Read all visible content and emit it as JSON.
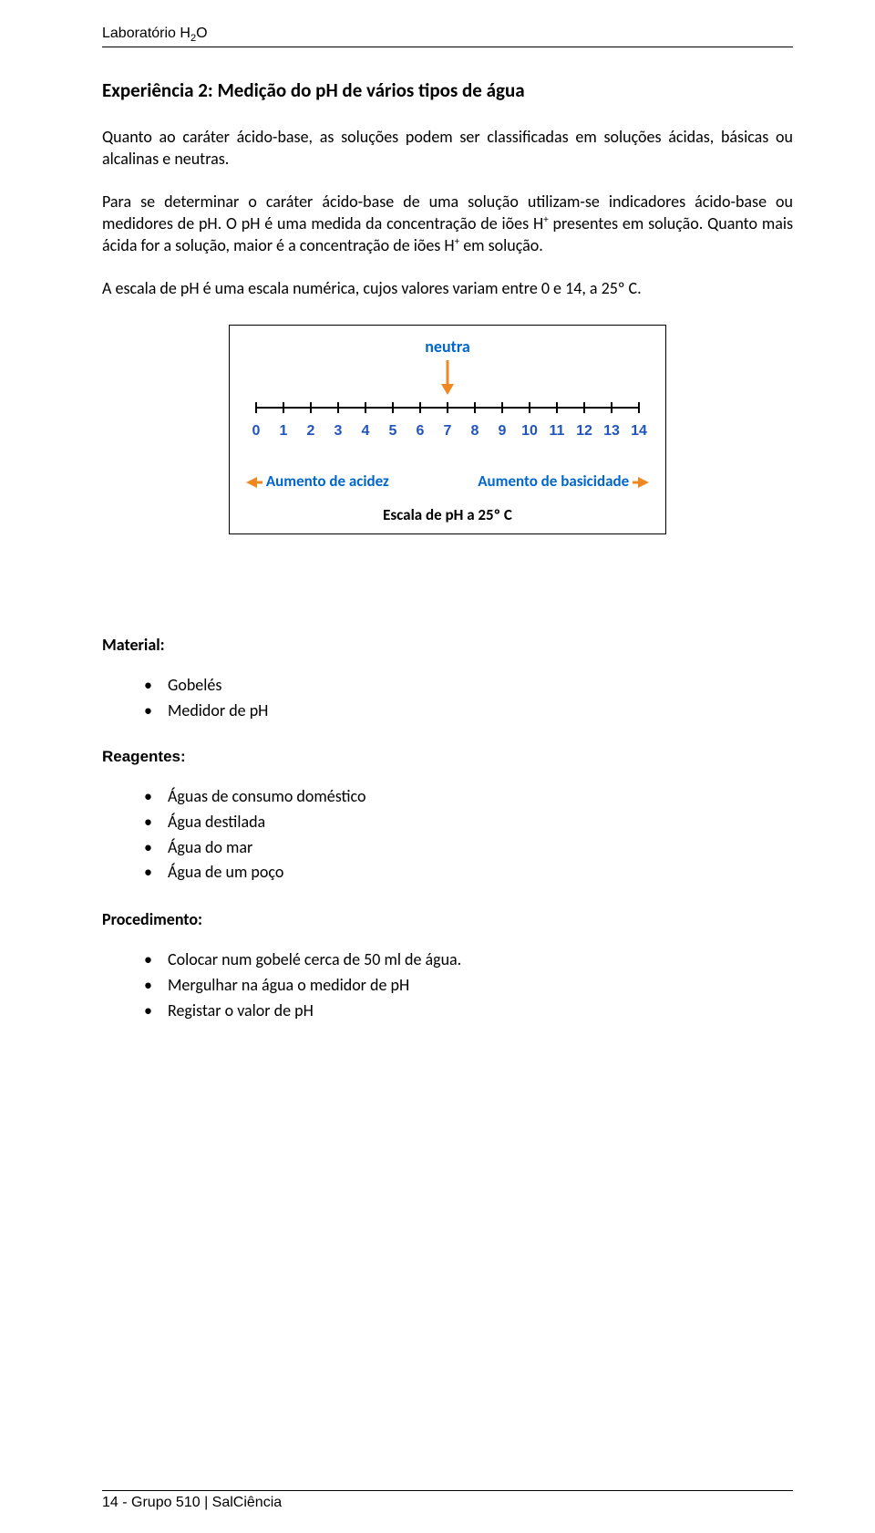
{
  "header": {
    "lab": "Laboratório H",
    "sub": "2",
    "suffix": "O"
  },
  "title": "Experiência 2: Medição do pH de vários tipos de água",
  "paras": {
    "p1": "Quanto ao caráter ácido-base, as soluções podem ser classificadas em soluções ácidas, básicas ou alcalinas e neutras.",
    "p2a": "Para se determinar o caráter ácido-base de uma solução utilizam-se indicadores ácido-base ou medidores de pH. O pH é uma medida da concentração de iões H",
    "p2b": " presentes em solução. Quanto mais ácida for a solução, maior é a concentração de iões H",
    "p2c": " em solução.",
    "p3": "A escala de pH é uma escala numérica, cujos valores variam entre 0 e 14, a 25º C."
  },
  "diagram": {
    "neutra_label": "neutra",
    "neutra_color": "#0066cc",
    "arrow_color": "#ee8822",
    "tick_color": "#2255bb",
    "axis_color": "#000000",
    "tick_values": [
      "0",
      "1",
      "2",
      "3",
      "4",
      "5",
      "6",
      "7",
      "8",
      "9",
      "10",
      "11",
      "12",
      "13",
      "14"
    ],
    "tick_fontsize": 16,
    "left_label": "Aumento de acidez",
    "right_label": "Aumento de basicidade",
    "label_color": "#0066cc",
    "left_arrow_color": "#ee8822",
    "right_arrow_color": "#ee8822",
    "caption": "Escala de pH a 25º C"
  },
  "material": {
    "heading": "Material:",
    "items": [
      "Gobelés",
      "Medidor de pH"
    ]
  },
  "reagentes": {
    "heading": "Reagentes:",
    "items": [
      "Águas de consumo doméstico",
      "Água destilada",
      "Água do mar",
      "Água de um poço"
    ]
  },
  "procedimento": {
    "heading": "Procedimento:",
    "items": [
      "Colocar num gobelé cerca de 50 ml de água.",
      "Mergulhar na água o medidor de pH",
      "Registar o valor de pH"
    ]
  },
  "footer": {
    "text": "14 - Grupo 510 | SalCiência"
  }
}
